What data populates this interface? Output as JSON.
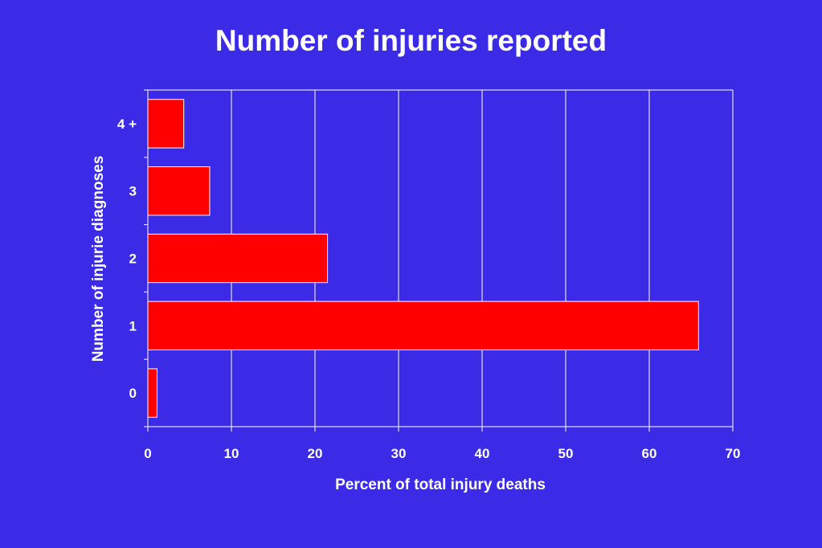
{
  "chart_data": {
    "type": "bar",
    "orientation": "horizontal",
    "title": "Number of injuries reported",
    "xlabel": "Percent of total injury deaths",
    "ylabel": "Number of injurie diagnoses",
    "categories": [
      "0",
      "1",
      "2",
      "3",
      "4 +"
    ],
    "values": [
      1.1,
      65.9,
      21.5,
      7.4,
      4.3
    ],
    "xlim": [
      0,
      70
    ],
    "xticks": [
      0,
      10,
      20,
      30,
      40,
      50,
      60,
      70
    ],
    "grid": true,
    "legend": "none",
    "colors": {
      "background": "#3B2BE6",
      "bar": "#FF0000",
      "bar_edge": "#FFFFFF",
      "grid": "#FFFFFF",
      "text": "#FFFFFF"
    }
  }
}
